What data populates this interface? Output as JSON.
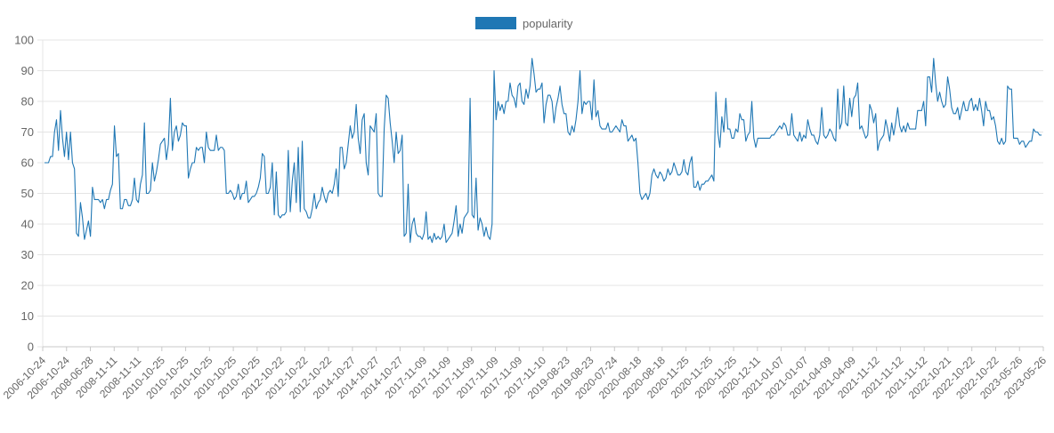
{
  "chart_data": {
    "type": "line",
    "legend_position": "top-center",
    "grid": true,
    "ylim": [
      0,
      100
    ],
    "yticks": [
      "0",
      "10",
      "20",
      "30",
      "40",
      "50",
      "60",
      "70",
      "80",
      "90",
      "100"
    ],
    "xticks": [
      "2006-10-24",
      "2006-10-24",
      "2008-06-28",
      "2008-11-11",
      "2008-11-11",
      "2010-10-25",
      "2010-10-25",
      "2010-10-25",
      "2010-10-25",
      "2010-10-25",
      "2012-10-22",
      "2012-10-22",
      "2012-10-22",
      "2014-10-27",
      "2014-10-27",
      "2014-10-27",
      "2017-11-09",
      "2017-11-09",
      "2017-11-09",
      "2017-11-09",
      "2017-11-09",
      "2017-11-10",
      "2019-08-23",
      "2019-08-23",
      "2020-07-24",
      "2020-08-18",
      "2020-08-18",
      "2020-11-25",
      "2020-11-25",
      "2020-11-25",
      "2020-12-11",
      "2021-01-07",
      "2021-01-07",
      "2021-04-09",
      "2021-04-09",
      "2021-11-12",
      "2021-11-12",
      "2021-11-12",
      "2022-10-21",
      "2022-10-22",
      "2022-10-22",
      "2023-05-26",
      "2023-05-26"
    ],
    "series": [
      {
        "name": "popularity",
        "color": "#1f77b4",
        "values": [
          60,
          60,
          60,
          62,
          62,
          70,
          74,
          64,
          77,
          68,
          62,
          70,
          61,
          70,
          60,
          58,
          37,
          36,
          47,
          42,
          35,
          38,
          41,
          36,
          52,
          48,
          48,
          48,
          47,
          48,
          45,
          48,
          48,
          51,
          53,
          72,
          62,
          63,
          45,
          45,
          48,
          48,
          46,
          46,
          48,
          55,
          48,
          47,
          53,
          56,
          73,
          50,
          50,
          51,
          60,
          54,
          57,
          61,
          66,
          67,
          68,
          61,
          66,
          81,
          64,
          70,
          72,
          67,
          69,
          73,
          72,
          72,
          55,
          58,
          60,
          60,
          65,
          64,
          65,
          65,
          60,
          70,
          65,
          64,
          64,
          64,
          69,
          64,
          65,
          65,
          64,
          50,
          50,
          51,
          50,
          48,
          49,
          53,
          48,
          50,
          50,
          54,
          47,
          48,
          49,
          49,
          50,
          52,
          55,
          63,
          62,
          50,
          50,
          52,
          60,
          43,
          57,
          43,
          42,
          43,
          43,
          44,
          64,
          44,
          54,
          60,
          47,
          65,
          44,
          67,
          45,
          44,
          42,
          42,
          45,
          50,
          45,
          47,
          48,
          52,
          49,
          47,
          50,
          51,
          50,
          53,
          58,
          49,
          65,
          65,
          58,
          60,
          66,
          72,
          68,
          70,
          79,
          68,
          63,
          74,
          76,
          60,
          56,
          72,
          71,
          70,
          76,
          50,
          49,
          49,
          71,
          82,
          81,
          73,
          67,
          60,
          70,
          63,
          64,
          69,
          36,
          37,
          53,
          34,
          40,
          42,
          37,
          36,
          36,
          35,
          37,
          44,
          35,
          36,
          34,
          37,
          35,
          36,
          35,
          36,
          40,
          34,
          35,
          36,
          37,
          41,
          46,
          36,
          40,
          37,
          42,
          43,
          44,
          81,
          43,
          42,
          55,
          38,
          42,
          40,
          36,
          39,
          36,
          35,
          40,
          90,
          74,
          80,
          77,
          79,
          76,
          80,
          80,
          86,
          82,
          81,
          78,
          85,
          86,
          80,
          79,
          84,
          81,
          85,
          94,
          89,
          83,
          84,
          84,
          86,
          73,
          79,
          82,
          82,
          80,
          73,
          78,
          81,
          85,
          79,
          76,
          76,
          70,
          69,
          72,
          70,
          74,
          80,
          90,
          76,
          80,
          79,
          80,
          80,
          74,
          87,
          75,
          77,
          72,
          71,
          71,
          71,
          73,
          70,
          70,
          71,
          72,
          71,
          70,
          74,
          72,
          72,
          67,
          68,
          69,
          67,
          68,
          60,
          50,
          48,
          49,
          50,
          48,
          50,
          56,
          58,
          56,
          55,
          57,
          56,
          54,
          55,
          58,
          56,
          57,
          60,
          58,
          56,
          56,
          57,
          61,
          57,
          56,
          60,
          62,
          52,
          52,
          54,
          51,
          53,
          53,
          54,
          54,
          55,
          56,
          54,
          83,
          70,
          65,
          75,
          70,
          81,
          71,
          71,
          68,
          68,
          71,
          70,
          76,
          74,
          74,
          67,
          69,
          70,
          80,
          68,
          65,
          68,
          68,
          68,
          68,
          68,
          68,
          68,
          69,
          69,
          70,
          71,
          72,
          71,
          73,
          72,
          69,
          69,
          76,
          69,
          68,
          67,
          70,
          67,
          69,
          68,
          74,
          71,
          69,
          69,
          67,
          66,
          69,
          78,
          69,
          68,
          69,
          71,
          70,
          68,
          67,
          84,
          71,
          73,
          85,
          73,
          72,
          81,
          75,
          81,
          82,
          86,
          71,
          72,
          70,
          68,
          69,
          79,
          77,
          73,
          76,
          64,
          67,
          68,
          69,
          74,
          71,
          67,
          73,
          69,
          73,
          78,
          72,
          70,
          72,
          70,
          73,
          71,
          71,
          71,
          71,
          77,
          77,
          77,
          80,
          72,
          88,
          88,
          83,
          94,
          86,
          80,
          83,
          80,
          78,
          79,
          88,
          84,
          78,
          76,
          76,
          78,
          74,
          77,
          80,
          77,
          77,
          80,
          81,
          77,
          79,
          77,
          81,
          77,
          72,
          80,
          77,
          77,
          74,
          75,
          72,
          67,
          66,
          68,
          66,
          67,
          85,
          84,
          84,
          68,
          68,
          68,
          66,
          67,
          67,
          65,
          66,
          67,
          67,
          71,
          70,
          70,
          69,
          69
        ]
      }
    ]
  }
}
